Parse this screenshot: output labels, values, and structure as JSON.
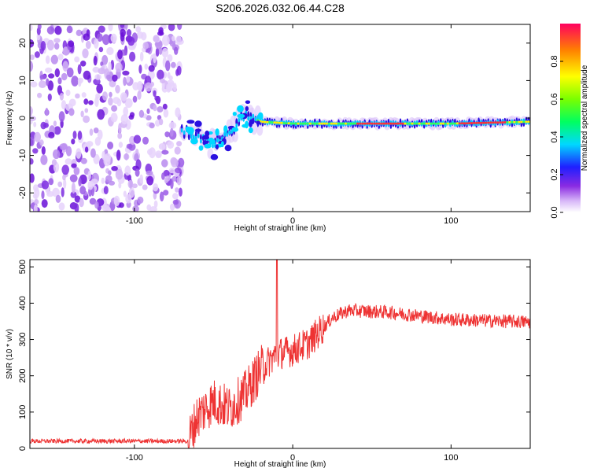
{
  "title": "S206.2026.032.06.44.C28",
  "chart_data": [
    {
      "type": "heatmap",
      "xlabel": "Height of straight line (km)",
      "ylabel": "Frequency (Hz)",
      "xlim": [
        -166,
        150
      ],
      "ylim": [
        -25,
        25
      ],
      "xticks": [
        -100,
        0,
        100
      ],
      "yticks": [
        -20,
        -10,
        0,
        10,
        20
      ],
      "xtick_labels": [
        "-100",
        "0",
        "100"
      ],
      "ytick_labels": [
        "-20",
        "-10",
        "0",
        "10",
        "20"
      ],
      "noise_region_x": [
        -166,
        -70
      ],
      "signal_ridge": [
        {
          "x": -70,
          "f": -3
        },
        {
          "x": -60,
          "f": -5
        },
        {
          "x": -50,
          "f": -7
        },
        {
          "x": -40,
          "f": -4
        },
        {
          "x": -30,
          "f": 1
        },
        {
          "x": -20,
          "f": -1
        },
        {
          "x": 0,
          "f": -1.5
        },
        {
          "x": 50,
          "f": -1.5
        },
        {
          "x": 100,
          "f": -1.5
        },
        {
          "x": 150,
          "f": -1
        }
      ],
      "colorbar": {
        "label": "Normalized spectral amplitude",
        "range": [
          0,
          1
        ],
        "ticks": [
          0.0,
          0.2,
          0.4,
          0.6,
          0.8
        ],
        "tick_labels": [
          "0.0",
          "0.2",
          "0.4",
          "0.6",
          "0.8"
        ]
      }
    },
    {
      "type": "line",
      "color": "#ee3333",
      "xlabel": "Height of straight line (km)",
      "ylabel": "SNR (10 * v/v)",
      "xlim": [
        -166,
        150
      ],
      "ylim": [
        0,
        520
      ],
      "xticks": [
        -100,
        0,
        100
      ],
      "yticks": [
        0,
        100,
        200,
        300,
        400,
        500
      ],
      "xtick_labels": [
        "-100",
        "0",
        "100"
      ],
      "ytick_labels": [
        "0",
        "100",
        "200",
        "300",
        "400",
        "500"
      ],
      "trend": [
        {
          "x": -166,
          "y": 20
        },
        {
          "x": -66,
          "y": 20
        },
        {
          "x": -60,
          "y": 90
        },
        {
          "x": -50,
          "y": 130
        },
        {
          "x": -40,
          "y": 110
        },
        {
          "x": -30,
          "y": 150
        },
        {
          "x": -20,
          "y": 220
        },
        {
          "x": -10,
          "y": 260
        },
        {
          "x": 0,
          "y": 270
        },
        {
          "x": 10,
          "y": 290
        },
        {
          "x": 25,
          "y": 360
        },
        {
          "x": 35,
          "y": 380
        },
        {
          "x": 60,
          "y": 375
        },
        {
          "x": 100,
          "y": 355
        },
        {
          "x": 150,
          "y": 348
        }
      ],
      "peak": {
        "x": -10,
        "y": 520
      }
    }
  ]
}
